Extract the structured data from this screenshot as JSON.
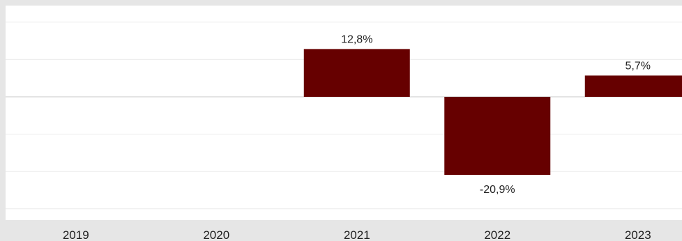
{
  "chart_data": {
    "type": "bar",
    "title": "",
    "xlabel": "",
    "ylabel": "",
    "categories": [
      "2019",
      "2020",
      "2021",
      "2022",
      "2023"
    ],
    "values": [
      null,
      null,
      12.8,
      -20.9,
      5.7
    ],
    "value_labels": [
      "",
      "",
      "12,8%",
      "-20,9%",
      "5,7%"
    ],
    "ylim": [
      -30,
      25
    ],
    "grid": true,
    "legend": "none"
  },
  "colors": {
    "bar": "#660000",
    "plot_background": "#ffffff",
    "outer_background": "#e6e6e6",
    "gridline": "#ececec",
    "zero_line": "#c8c8c8",
    "text": "#222222"
  }
}
